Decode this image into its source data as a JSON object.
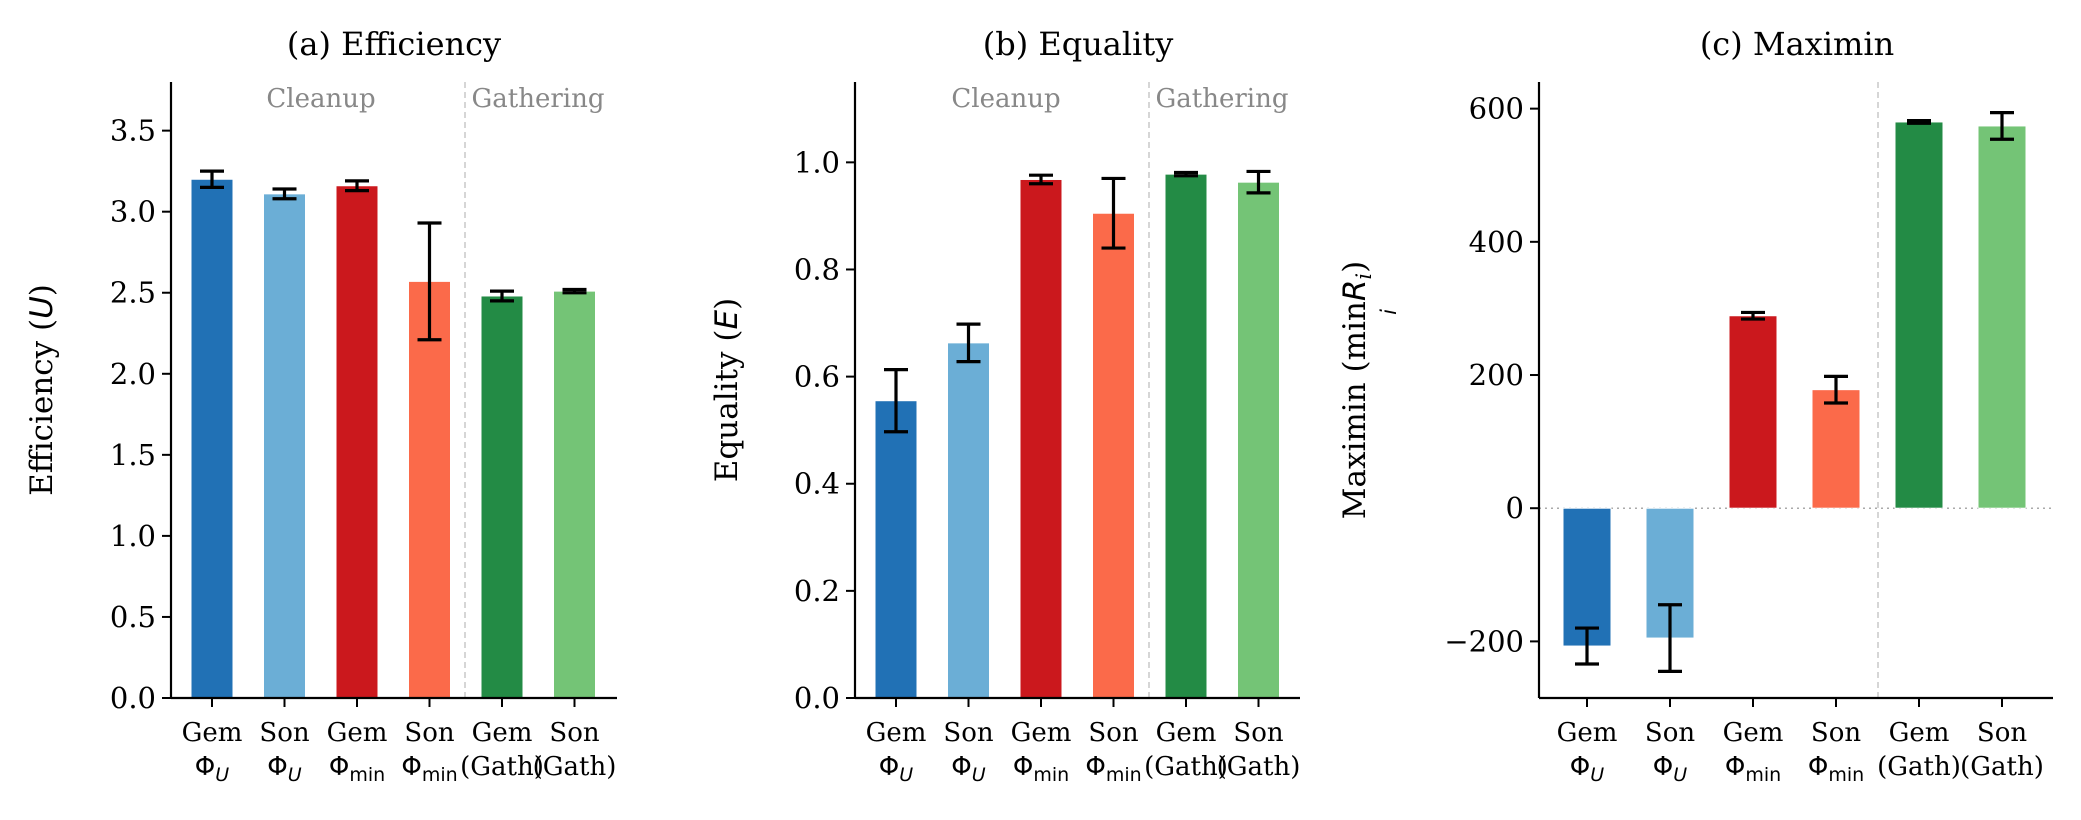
{
  "chart_data": [
    {
      "type": "bar",
      "title": "(a) Efficiency",
      "ylabel_text": "Efficiency (",
      "ylabel_var": "U",
      "ylabel_end": ")",
      "ylim": [
        0,
        3.8
      ],
      "yticks": [
        "0.0",
        "0.5",
        "1.0",
        "1.5",
        "2.0",
        "2.5",
        "3.0",
        "3.5"
      ],
      "ytick_values": [
        0,
        0.5,
        1.0,
        1.5,
        2.0,
        2.5,
        3.0,
        3.5
      ],
      "zero_line": false,
      "group_labels": [
        "Cleanup",
        "Gathering"
      ],
      "categories": [
        "Gem Φ_U",
        "Son Φ_U",
        "Gem Φ_min",
        "Son Φ_min",
        "Gem (Gath)",
        "Son (Gath)"
      ],
      "values": [
        3.2,
        3.11,
        3.16,
        2.57,
        2.48,
        2.51
      ],
      "errors": [
        0.05,
        0.03,
        0.03,
        0.36,
        0.03,
        0.01
      ],
      "colors": [
        "#2171b5",
        "#6baed6",
        "#cb181d",
        "#fb6a4a",
        "#238b45",
        "#74c476"
      ]
    },
    {
      "type": "bar",
      "title": "(b) Equality",
      "ylabel_text": "Equality (",
      "ylabel_var": "E",
      "ylabel_end": ")",
      "ylim": [
        0,
        1.15
      ],
      "yticks": [
        "0.0",
        "0.2",
        "0.4",
        "0.6",
        "0.8",
        "1.0"
      ],
      "ytick_values": [
        0,
        0.2,
        0.4,
        0.6,
        0.8,
        1.0
      ],
      "zero_line": false,
      "group_labels": [
        "Cleanup",
        "Gathering"
      ],
      "categories": [
        "Gem Φ_U",
        "Son Φ_U",
        "Gem Φ_min",
        "Son Φ_min",
        "Gem (Gath)",
        "Son (Gath)"
      ],
      "values": [
        0.555,
        0.663,
        0.968,
        0.905,
        0.978,
        0.963
      ],
      "errors": [
        0.058,
        0.035,
        0.008,
        0.065,
        0.003,
        0.02
      ],
      "colors": [
        "#2171b5",
        "#6baed6",
        "#cb181d",
        "#fb6a4a",
        "#238b45",
        "#74c476"
      ]
    },
    {
      "type": "bar",
      "title": "(c) Maximin",
      "ylabel_text": "Maximin (min",
      "ylabel_var": "R",
      "ylabel_sub_i": "i",
      "ylabel_end": ")",
      "ylabel_under": "i",
      "ylim": [
        -285,
        640
      ],
      "yticks": [
        "−200",
        "0",
        "200",
        "400",
        "600"
      ],
      "ytick_values": [
        -200,
        0,
        200,
        400,
        600
      ],
      "zero_line": true,
      "group_labels": [],
      "categories": [
        "Gem Φ_U",
        "Son Φ_U",
        "Gem Φ_min",
        "Son Φ_min",
        "Gem (Gath)",
        "Son (Gath)"
      ],
      "values": [
        -207,
        -195,
        289,
        178,
        580,
        574
      ],
      "errors": [
        27,
        50,
        5,
        20,
        2,
        20
      ],
      "colors": [
        "#2171b5",
        "#6baed6",
        "#cb181d",
        "#fb6a4a",
        "#238b45",
        "#74c476"
      ]
    }
  ]
}
